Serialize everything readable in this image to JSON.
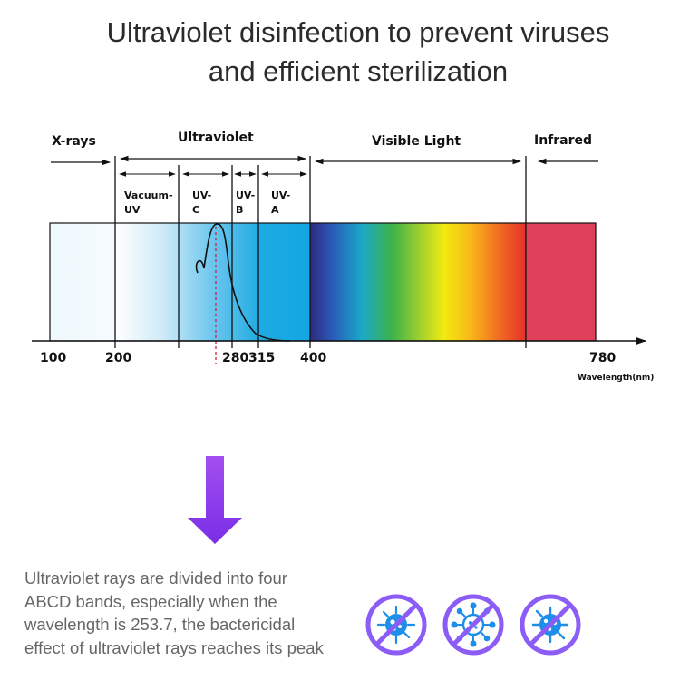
{
  "title": {
    "line1": "Ultraviolet disinfection to prevent viruses",
    "line2": "and efficient sterilization"
  },
  "spectrum": {
    "regions": [
      "X-rays",
      "Ultraviolet",
      "Visible Light",
      "Infrared"
    ],
    "sub_bands": [
      {
        "line1": "Vacuum-",
        "line2": "UV"
      },
      {
        "line1": "UV-",
        "line2": "C"
      },
      {
        "line1": "UV-",
        "line2": "B"
      },
      {
        "line1": "UV-",
        "line2": "A"
      }
    ],
    "ticks": [
      "100",
      "200",
      "280",
      "315",
      "400",
      "780"
    ],
    "unit_label": "Wavelength(nm)"
  },
  "description": {
    "lines": [
      "Ultraviolet rays are divided into four",
      "ABCD bands, especially when the",
      "wavelength is 253.7, the bactericidal",
      "effect of ultraviolet rays reaches its peak"
    ]
  },
  "icons": [
    "no-virus-icon",
    "no-bacteria-icon",
    "no-germ-icon"
  ],
  "colors": {
    "uv_blue": "#1aa7e0",
    "arrow_purple": "#8a3cf0",
    "icon_purple": "#8b5cf6",
    "icon_blue": "#1f8ee8",
    "infrared_red": "#e0405a"
  }
}
